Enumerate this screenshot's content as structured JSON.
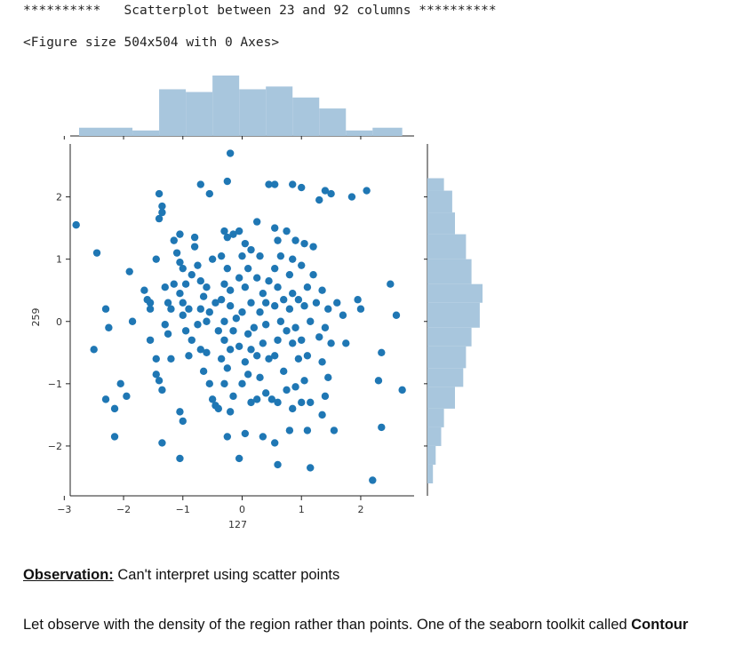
{
  "header": {
    "stars_left": "**********",
    "title": "Scatterplot between 23 and 92 columns",
    "stars_right": "**********"
  },
  "figure_info": "<Figure size 504x504 with 0 Axes>",
  "observation": {
    "label": "Observation:",
    "text": " Can't interpret using scatter points"
  },
  "paragraph": {
    "text": "Let observe with the density of the region rather than points. One of the seaborn toolkit called ",
    "bold": "Contour"
  },
  "colors": {
    "points": "#1f77b4",
    "hist": "#a8c6dd",
    "axis": "#222222"
  },
  "chart_data": {
    "type": "scatter",
    "title": "",
    "xlabel": "127",
    "ylabel": "259",
    "xlim": [
      -2.9,
      2.9
    ],
    "ylim": [
      -2.8,
      2.85
    ],
    "xticks": [
      -3,
      -2,
      -1,
      0,
      1,
      2
    ],
    "yticks": [
      -2,
      -1,
      0,
      1,
      2
    ],
    "xtick_labels": [
      "−3",
      "−2",
      "−1",
      "0",
      "1",
      "2"
    ],
    "ytick_labels": [
      "−2",
      "−1",
      "0",
      "1",
      "2"
    ],
    "marginal_x_hist": {
      "bin_edges": [
        -2.75,
        -1.85,
        -1.4,
        -0.95,
        -0.5,
        -0.05,
        0.4,
        0.85,
        1.3,
        1.75,
        2.2,
        2.7
      ],
      "heights": [
        3,
        2,
        17,
        16,
        22,
        17,
        18,
        14,
        10,
        2,
        3
      ]
    },
    "marginal_y_hist": {
      "bin_edges": [
        -2.6,
        -2.3,
        -2.0,
        -1.7,
        -1.4,
        -1.05,
        -0.75,
        -0.4,
        -0.1,
        0.3,
        0.6,
        1.0,
        1.4,
        1.75,
        2.1,
        2.3
      ],
      "heights": [
        2,
        3,
        5,
        6,
        10,
        13,
        14,
        16,
        19,
        20,
        16,
        14,
        10,
        9,
        6
      ]
    },
    "points": [
      [
        -2.8,
        1.55
      ],
      [
        -2.45,
        1.1
      ],
      [
        -2.3,
        0.2
      ],
      [
        -2.25,
        -0.1
      ],
      [
        -2.5,
        -0.45
      ],
      [
        -2.3,
        -1.25
      ],
      [
        -2.15,
        -1.4
      ],
      [
        -2.05,
        -1.0
      ],
      [
        -1.95,
        -1.2
      ],
      [
        -2.15,
        -1.85
      ],
      [
        -1.9,
        0.8
      ],
      [
        -1.85,
        0.0
      ],
      [
        -1.65,
        0.5
      ],
      [
        -1.55,
        0.3
      ],
      [
        -1.45,
        1.0
      ],
      [
        -1.4,
        2.05
      ],
      [
        -1.35,
        1.85
      ],
      [
        -1.35,
        1.75
      ],
      [
        -1.4,
        1.65
      ],
      [
        -1.3,
        0.55
      ],
      [
        -1.25,
        0.3
      ],
      [
        -1.2,
        0.2
      ],
      [
        -1.3,
        -0.05
      ],
      [
        -1.25,
        -0.2
      ],
      [
        -1.45,
        -0.6
      ],
      [
        -1.45,
        -0.85
      ],
      [
        -1.4,
        -0.95
      ],
      [
        -1.35,
        -1.1
      ],
      [
        -1.2,
        -0.6
      ],
      [
        -1.05,
        0.95
      ],
      [
        -1.15,
        1.3
      ],
      [
        -1.1,
        1.1
      ],
      [
        -1.05,
        1.4
      ],
      [
        -1.0,
        0.85
      ],
      [
        -0.95,
        0.6
      ],
      [
        -1.05,
        0.45
      ],
      [
        -1.0,
        0.3
      ],
      [
        -0.9,
        0.2
      ],
      [
        -1.0,
        0.1
      ],
      [
        -0.95,
        -0.15
      ],
      [
        -0.85,
        -0.3
      ],
      [
        -0.9,
        -0.55
      ],
      [
        -1.05,
        -1.45
      ],
      [
        -1.0,
        -1.6
      ],
      [
        -1.05,
        -2.2
      ],
      [
        -1.35,
        -1.95
      ],
      [
        -0.8,
        1.2
      ],
      [
        -0.75,
        0.9
      ],
      [
        -0.7,
        0.65
      ],
      [
        -0.65,
        0.4
      ],
      [
        -0.7,
        0.2
      ],
      [
        -0.6,
        0.0
      ],
      [
        -0.75,
        -0.05
      ],
      [
        -0.6,
        -0.5
      ],
      [
        -0.65,
        -0.8
      ],
      [
        -0.55,
        -1.0
      ],
      [
        -0.5,
        -1.25
      ],
      [
        -0.45,
        -1.35
      ],
      [
        -0.7,
        2.2
      ],
      [
        -0.55,
        2.05
      ],
      [
        -0.2,
        2.7
      ],
      [
        -0.25,
        2.25
      ],
      [
        -0.3,
        1.45
      ],
      [
        -0.25,
        1.35
      ],
      [
        -0.15,
        1.4
      ],
      [
        -0.35,
        1.05
      ],
      [
        -0.25,
        0.85
      ],
      [
        -0.3,
        0.6
      ],
      [
        -0.2,
        0.5
      ],
      [
        -0.35,
        0.35
      ],
      [
        -0.2,
        0.25
      ],
      [
        -0.3,
        0.0
      ],
      [
        -0.15,
        -0.15
      ],
      [
        -0.3,
        -0.3
      ],
      [
        -0.2,
        -0.45
      ],
      [
        -0.35,
        -0.6
      ],
      [
        -0.25,
        -0.75
      ],
      [
        -0.3,
        -1.0
      ],
      [
        -0.15,
        -1.2
      ],
      [
        -0.2,
        -1.45
      ],
      [
        -0.25,
        -1.85
      ],
      [
        -0.05,
        1.45
      ],
      [
        0.05,
        1.25
      ],
      [
        0.0,
        1.05
      ],
      [
        0.1,
        0.85
      ],
      [
        -0.05,
        0.7
      ],
      [
        0.05,
        0.55
      ],
      [
        0.15,
        0.3
      ],
      [
        0.0,
        0.15
      ],
      [
        0.1,
        -0.2
      ],
      [
        0.15,
        -0.45
      ],
      [
        0.05,
        -0.65
      ],
      [
        0.1,
        -0.85
      ],
      [
        0.0,
        -1.0
      ],
      [
        0.15,
        -1.3
      ],
      [
        0.05,
        -1.8
      ],
      [
        -0.05,
        -2.2
      ],
      [
        0.25,
        1.6
      ],
      [
        0.3,
        1.05
      ],
      [
        0.25,
        0.7
      ],
      [
        0.35,
        0.45
      ],
      [
        0.3,
        0.15
      ],
      [
        0.4,
        -0.05
      ],
      [
        0.35,
        -0.35
      ],
      [
        0.45,
        -0.6
      ],
      [
        0.3,
        -0.9
      ],
      [
        0.4,
        -1.15
      ],
      [
        0.5,
        -1.25
      ],
      [
        0.35,
        -1.85
      ],
      [
        0.45,
        2.2
      ],
      [
        0.55,
        2.2
      ],
      [
        0.6,
        1.3
      ],
      [
        0.65,
        1.05
      ],
      [
        0.55,
        0.85
      ],
      [
        0.6,
        0.55
      ],
      [
        0.55,
        0.25
      ],
      [
        0.65,
        0.0
      ],
      [
        0.6,
        -0.3
      ],
      [
        0.55,
        -0.55
      ],
      [
        0.7,
        -0.8
      ],
      [
        0.6,
        -1.3
      ],
      [
        0.55,
        -1.95
      ],
      [
        0.6,
        -2.3
      ],
      [
        0.75,
        1.45
      ],
      [
        0.9,
        1.3
      ],
      [
        0.85,
        1.0
      ],
      [
        0.8,
        0.75
      ],
      [
        0.85,
        0.45
      ],
      [
        0.8,
        0.2
      ],
      [
        0.9,
        -0.1
      ],
      [
        0.85,
        -0.35
      ],
      [
        0.95,
        -0.6
      ],
      [
        0.9,
        -1.05
      ],
      [
        0.85,
        -1.4
      ],
      [
        0.8,
        -1.75
      ],
      [
        0.85,
        2.2
      ],
      [
        1.0,
        2.15
      ],
      [
        1.05,
        1.25
      ],
      [
        1.0,
        0.9
      ],
      [
        1.1,
        0.55
      ],
      [
        1.05,
        0.25
      ],
      [
        1.15,
        0.0
      ],
      [
        1.0,
        -0.3
      ],
      [
        1.1,
        -0.55
      ],
      [
        1.05,
        -0.95
      ],
      [
        1.15,
        -1.3
      ],
      [
        1.1,
        -1.75
      ],
      [
        1.15,
        -2.35
      ],
      [
        1.3,
        1.95
      ],
      [
        1.4,
        2.1
      ],
      [
        1.5,
        2.05
      ],
      [
        1.35,
        0.5
      ],
      [
        1.45,
        0.2
      ],
      [
        1.4,
        -0.1
      ],
      [
        1.5,
        -0.35
      ],
      [
        1.35,
        -0.65
      ],
      [
        1.45,
        -0.9
      ],
      [
        1.4,
        -1.2
      ],
      [
        1.55,
        -1.75
      ],
      [
        1.6,
        0.3
      ],
      [
        1.7,
        0.1
      ],
      [
        1.75,
        -0.35
      ],
      [
        1.85,
        2.0
      ],
      [
        1.95,
        0.35
      ],
      [
        2.0,
        0.2
      ],
      [
        2.1,
        2.1
      ],
      [
        2.2,
        -2.55
      ],
      [
        2.35,
        -0.5
      ],
      [
        2.3,
        -0.95
      ],
      [
        2.35,
        -1.7
      ],
      [
        2.5,
        0.6
      ],
      [
        2.6,
        0.1
      ],
      [
        2.7,
        -1.1
      ],
      [
        -1.55,
        0.2
      ],
      [
        -1.6,
        0.35
      ],
      [
        -0.55,
        0.15
      ],
      [
        -0.45,
        0.3
      ],
      [
        -0.05,
        -0.4
      ],
      [
        0.2,
        -0.1
      ],
      [
        0.4,
        0.3
      ],
      [
        0.7,
        0.35
      ],
      [
        0.75,
        -0.15
      ],
      [
        1.25,
        0.3
      ],
      [
        1.2,
        0.75
      ],
      [
        1.3,
        -0.25
      ],
      [
        -0.85,
        0.75
      ],
      [
        -0.6,
        0.55
      ],
      [
        -0.4,
        -0.15
      ],
      [
        -0.1,
        0.05
      ],
      [
        0.25,
        -0.55
      ],
      [
        0.45,
        0.65
      ],
      [
        0.95,
        0.35
      ],
      [
        1.0,
        -1.3
      ],
      [
        1.2,
        1.2
      ],
      [
        -0.5,
        1.0
      ],
      [
        -1.15,
        0.6
      ],
      [
        -0.7,
        -0.45
      ],
      [
        0.15,
        1.15
      ],
      [
        0.55,
        1.5
      ],
      [
        -0.8,
        1.35
      ],
      [
        -0.4,
        -1.4
      ],
      [
        0.25,
        -1.25
      ],
      [
        0.75,
        -1.1
      ],
      [
        1.35,
        -1.5
      ],
      [
        -1.55,
        -0.3
      ]
    ]
  }
}
